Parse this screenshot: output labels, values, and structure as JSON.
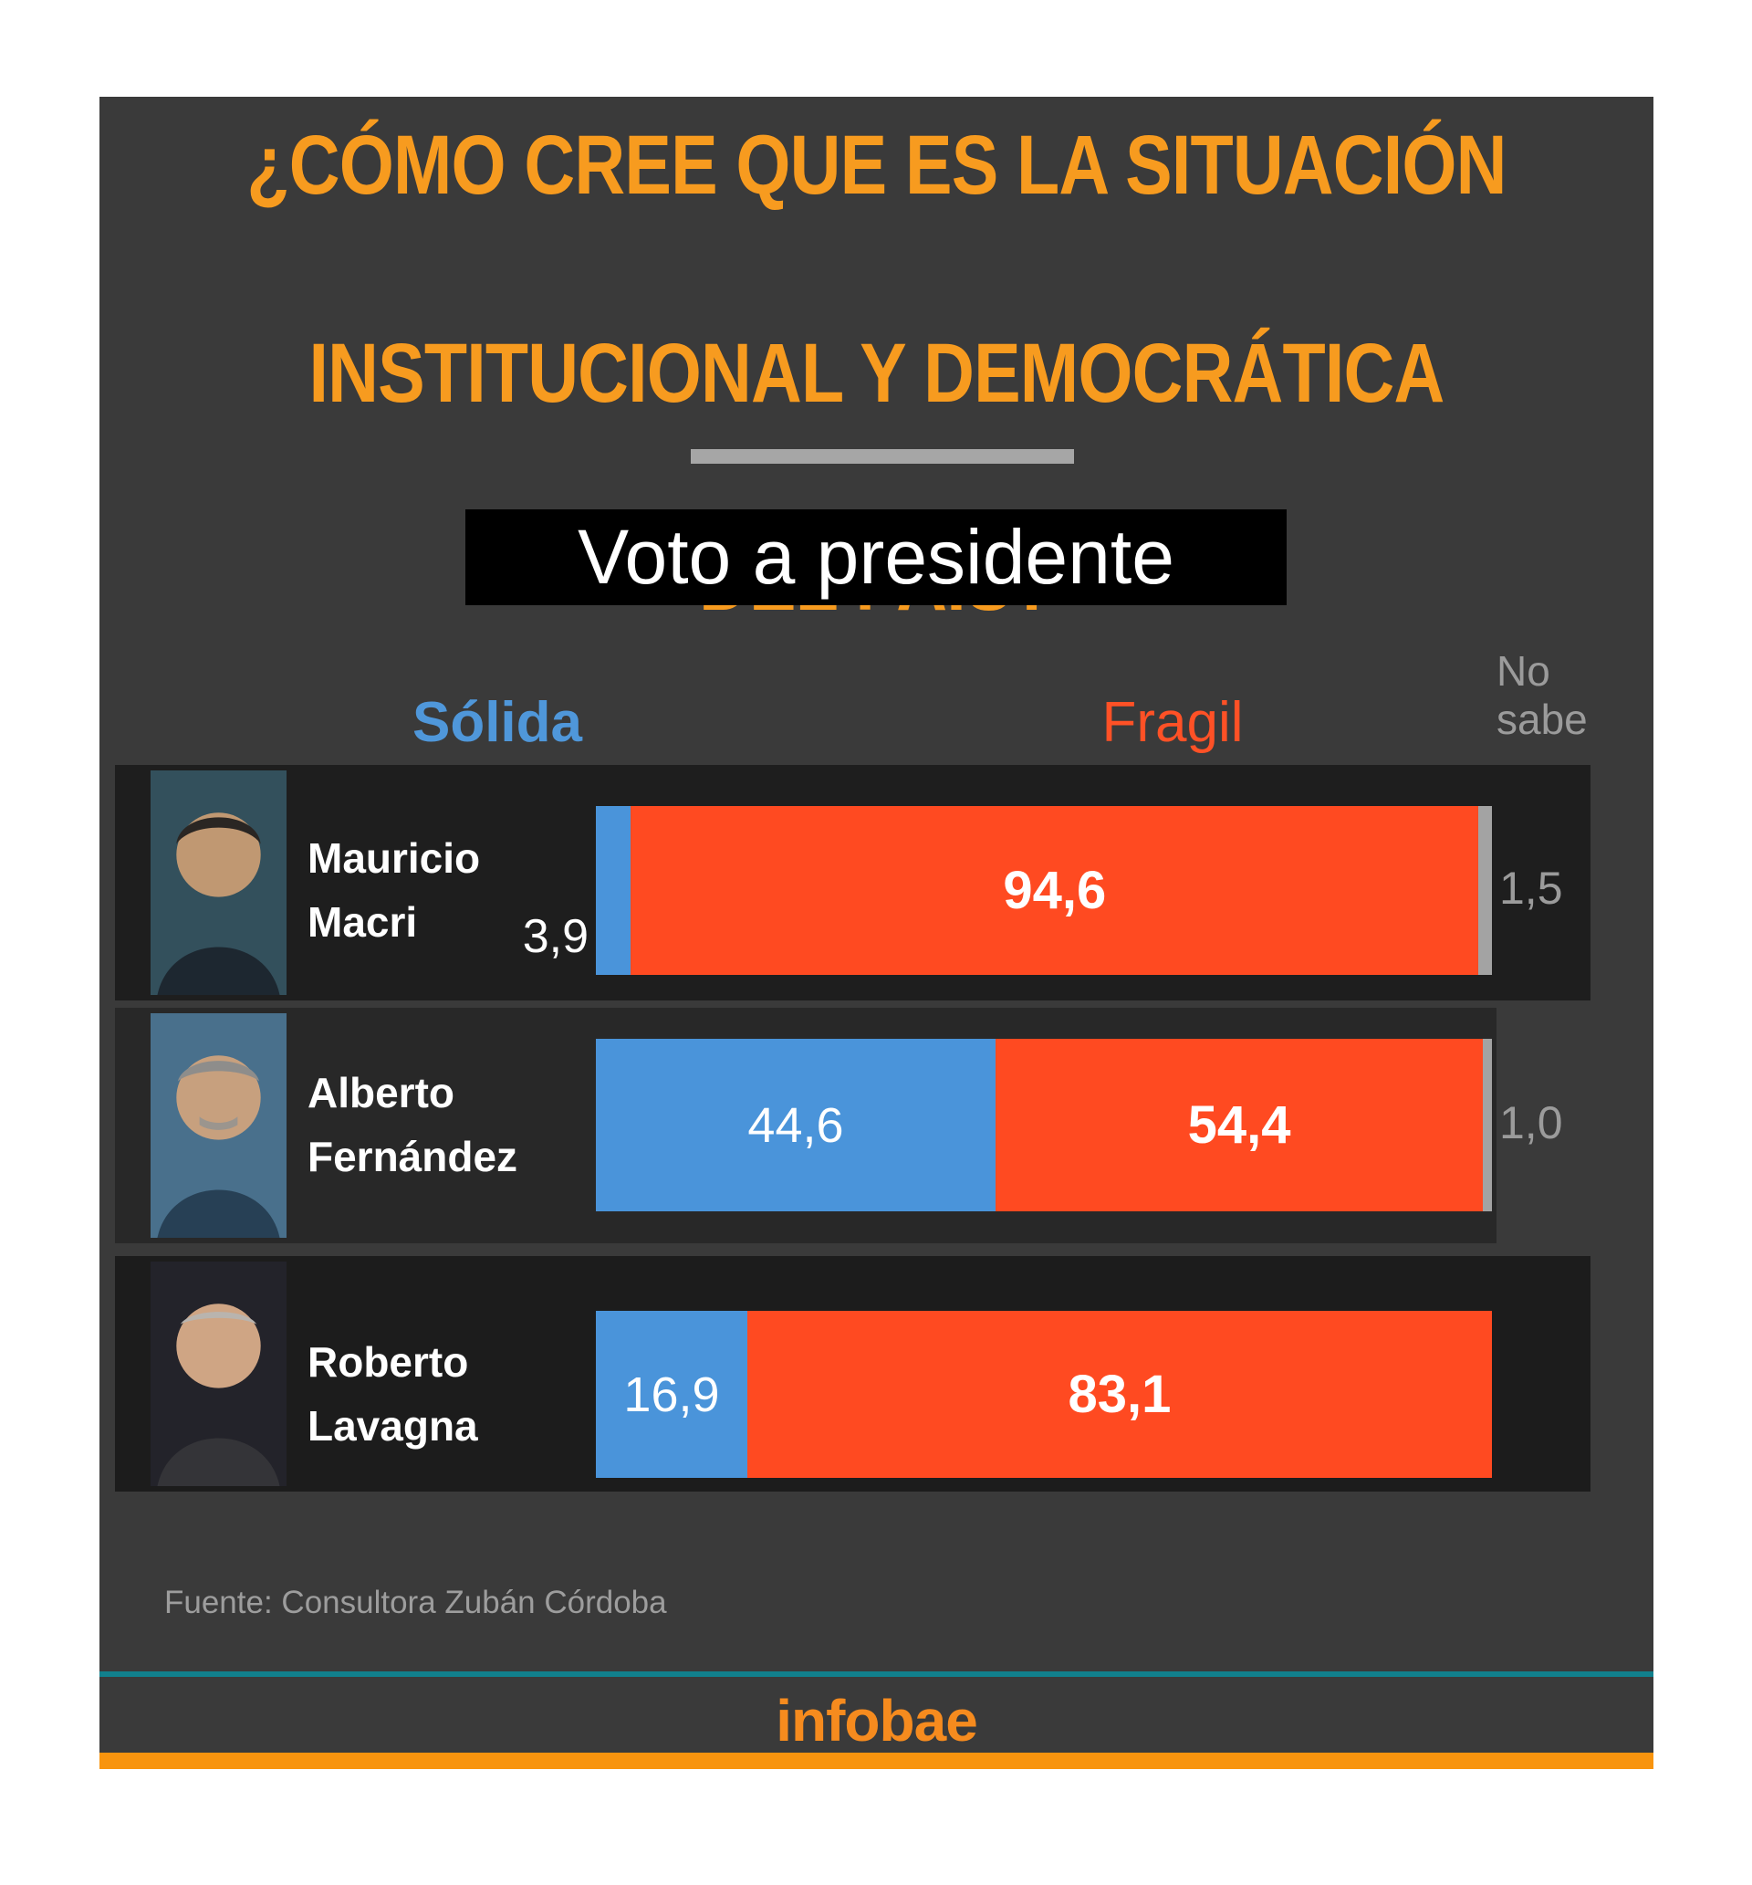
{
  "title": {
    "line1": "¿CÓMO CREE QUE ES LA SITUACIÓN",
    "line2": "INSTITUCIONAL Y DEMOCRÁTICA",
    "line3": "DEL PAÍS?",
    "color": "#f79b1f"
  },
  "subtitle": "Voto a presidente",
  "legend": {
    "solida": "Sólida",
    "fragil": "Fragil",
    "no_sabe": "No\nsabe",
    "solida_color": "#4f97da",
    "fragil_color": "#ff5126",
    "no_sabe_color": "#9b9b9b"
  },
  "chart_data": {
    "type": "bar",
    "orientation": "horizontal",
    "stacked": true,
    "title": "¿Cómo cree que es la situación institucional y democrática del país?",
    "subtitle": "Voto a presidente",
    "categories": [
      "Mauricio Macri",
      "Alberto Fernández",
      "Roberto Lavagna"
    ],
    "series": [
      {
        "name": "Sólida",
        "color": "#4a94da",
        "values": [
          3.9,
          44.6,
          16.9
        ]
      },
      {
        "name": "Fragil",
        "color": "#ff4a21",
        "values": [
          94.6,
          54.4,
          83.1
        ]
      },
      {
        "name": "No sabe",
        "color": "#a3a3a3",
        "values": [
          1.5,
          1.0,
          0
        ]
      }
    ],
    "xlim": [
      0,
      100
    ],
    "value_format": "percent with comma decimal",
    "legend_position": "top",
    "grid": false,
    "source": "Fuente: Consultora Zubán Córdoba"
  },
  "rows": [
    {
      "name": "Mauricio\nMacri",
      "values": {
        "solida": 3.9,
        "fragil": 94.6,
        "no_sabe": 1.5
      },
      "labels": {
        "solida_outside": "3,9",
        "fragil": "94,6",
        "no_sabe": "1,5"
      },
      "photo_bg": "#33505c"
    },
    {
      "name": "Alberto\nFernández",
      "values": {
        "solida": 44.6,
        "fragil": 54.4,
        "no_sabe": 1.0
      },
      "labels": {
        "solida_inside": "44,6",
        "fragil": "54,4",
        "no_sabe": "1,0"
      },
      "photo_bg": "#49708c"
    },
    {
      "name": "Roberto\nLavagna",
      "values": {
        "solida": 16.9,
        "fragil": 83.1
      },
      "labels": {
        "solida_inside": "16,9",
        "fragil": "83,1"
      },
      "photo_bg": "#23232a"
    }
  ],
  "source": "Fuente: Consultora Zubán Córdoba",
  "footer": {
    "logo": "infobae",
    "logo_color": "#f68b1e",
    "teal_line_color": "#11808d",
    "accent_bar_color": "#f8940e"
  }
}
